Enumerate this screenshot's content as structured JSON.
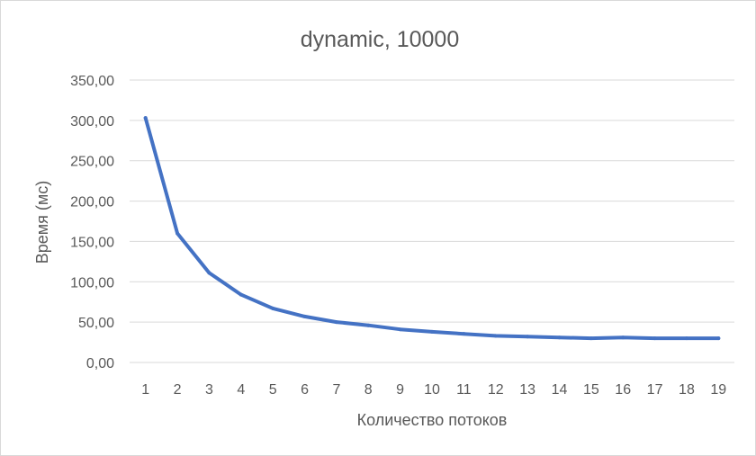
{
  "chart_data": {
    "type": "line",
    "title": "dynamic, 10000",
    "xlabel": "Количество потоков",
    "ylabel": "Время (мс)",
    "categories": [
      "1",
      "2",
      "3",
      "4",
      "5",
      "6",
      "7",
      "8",
      "9",
      "10",
      "11",
      "12",
      "13",
      "14",
      "15",
      "16",
      "17",
      "18",
      "19"
    ],
    "series": [
      {
        "values": [
          303,
          160,
          111,
          84,
          67,
          57,
          50,
          46,
          41,
          38,
          35.5,
          33,
          32,
          31,
          30,
          31,
          30,
          30,
          30
        ],
        "color": "#4472c4"
      }
    ],
    "ylim": [
      0,
      350
    ],
    "yticks": [
      "0,00",
      "50,00",
      "100,00",
      "150,00",
      "200,00",
      "250,00",
      "300,00",
      "350,00"
    ],
    "grid": true,
    "legend": "none"
  }
}
